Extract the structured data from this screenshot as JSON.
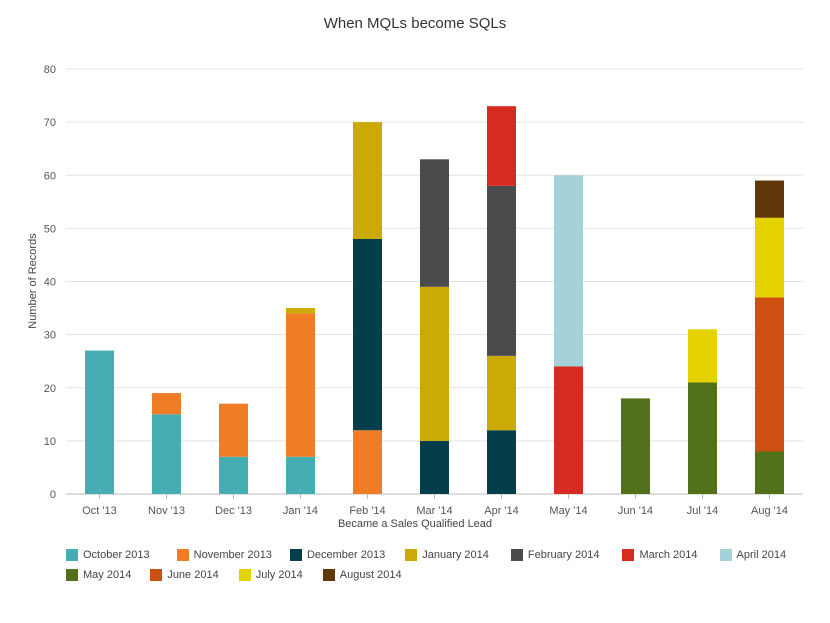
{
  "colors": {
    "October 2013": "#46aeb2",
    "November 2013": "#f07c26",
    "December 2013": "#053e4b",
    "January 2014": "#ccaa06",
    "February 2014": "#4a4b4d",
    "March 2014": "#d62b20",
    "April 2014": "#a5d2d8",
    "May 2014": "#53711b",
    "June 2014": "#cb5012",
    "July 2014": "#e4d300",
    "August 2014": "#5f3708"
  },
  "chart_data": {
    "type": "bar",
    "stacked": true,
    "title": "When MQLs become SQLs",
    "xlabel": "Became a Sales Qualified Lead",
    "ylabel": "Number of Records",
    "ylim": [
      0,
      80
    ],
    "yticks": [
      "0",
      "10",
      "20",
      "30",
      "40",
      "50",
      "60",
      "70",
      "80"
    ],
    "grid": true,
    "legend_position": "bottom",
    "categories": [
      "Oct '13",
      "Nov '13",
      "Dec '13",
      "Jan '14",
      "Feb '14",
      "Mar '14",
      "Apr '14",
      "May '14",
      "Jun '14",
      "Jul '14",
      "Aug '14"
    ],
    "series": [
      {
        "name": "October 2013",
        "values": [
          27,
          15,
          7,
          7,
          0,
          0,
          0,
          0,
          0,
          0,
          0
        ]
      },
      {
        "name": "November 2013",
        "values": [
          0,
          4,
          10,
          27,
          12,
          0,
          0,
          0,
          0,
          0,
          0
        ]
      },
      {
        "name": "December 2013",
        "values": [
          0,
          0,
          0,
          0,
          36,
          10,
          12,
          0,
          0,
          0,
          0
        ]
      },
      {
        "name": "January 2014",
        "values": [
          0,
          0,
          0,
          1,
          22,
          29,
          14,
          0,
          0,
          0,
          0
        ]
      },
      {
        "name": "February 2014",
        "values": [
          0,
          0,
          0,
          0,
          0,
          24,
          32,
          0,
          0,
          0,
          0
        ]
      },
      {
        "name": "March 2014",
        "values": [
          0,
          0,
          0,
          0,
          0,
          0,
          15,
          24,
          0,
          0,
          0
        ]
      },
      {
        "name": "April 2014",
        "values": [
          0,
          0,
          0,
          0,
          0,
          0,
          0,
          36,
          0,
          0,
          0
        ]
      },
      {
        "name": "May 2014",
        "values": [
          0,
          0,
          0,
          0,
          0,
          0,
          0,
          0,
          18,
          21,
          8
        ]
      },
      {
        "name": "June 2014",
        "values": [
          0,
          0,
          0,
          0,
          0,
          0,
          0,
          0,
          0,
          0,
          29
        ]
      },
      {
        "name": "July 2014",
        "values": [
          0,
          0,
          0,
          0,
          0,
          0,
          0,
          0,
          0,
          10,
          15
        ]
      },
      {
        "name": "August 2014",
        "values": [
          0,
          0,
          0,
          0,
          0,
          0,
          0,
          0,
          0,
          0,
          7
        ]
      }
    ]
  }
}
